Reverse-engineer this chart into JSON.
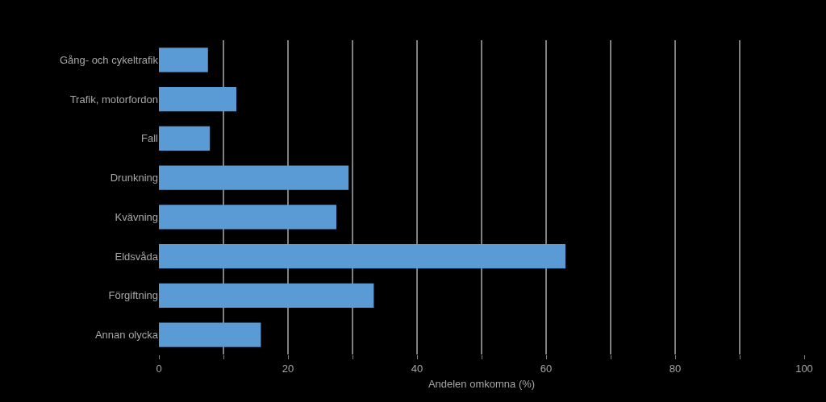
{
  "chart_data": {
    "type": "bar",
    "orientation": "horizontal",
    "xlabel": "Andelen omkomna (%)",
    "categories": [
      "Gång- och cykeltrafik",
      "Trafik, motorfordon",
      "Fall",
      "Drunkning",
      "Kvävning",
      "Eldsvåda",
      "Förgiftning",
      "Annan olycka"
    ],
    "values": [
      7.6,
      12,
      7.9,
      29.4,
      27.5,
      63,
      33.3,
      15.8
    ],
    "color": "#5b9bd5",
    "xlim": [
      0,
      100
    ],
    "xticks": [
      0,
      {
        "value": 10,
        "label": null
      },
      20,
      {
        "value": 30,
        "label": null
      },
      40,
      {
        "value": 50,
        "label": null
      },
      60,
      {
        "value": 70,
        "label": null
      },
      80,
      {
        "value": 90,
        "label": null
      },
      100
    ],
    "grid": "x"
  }
}
